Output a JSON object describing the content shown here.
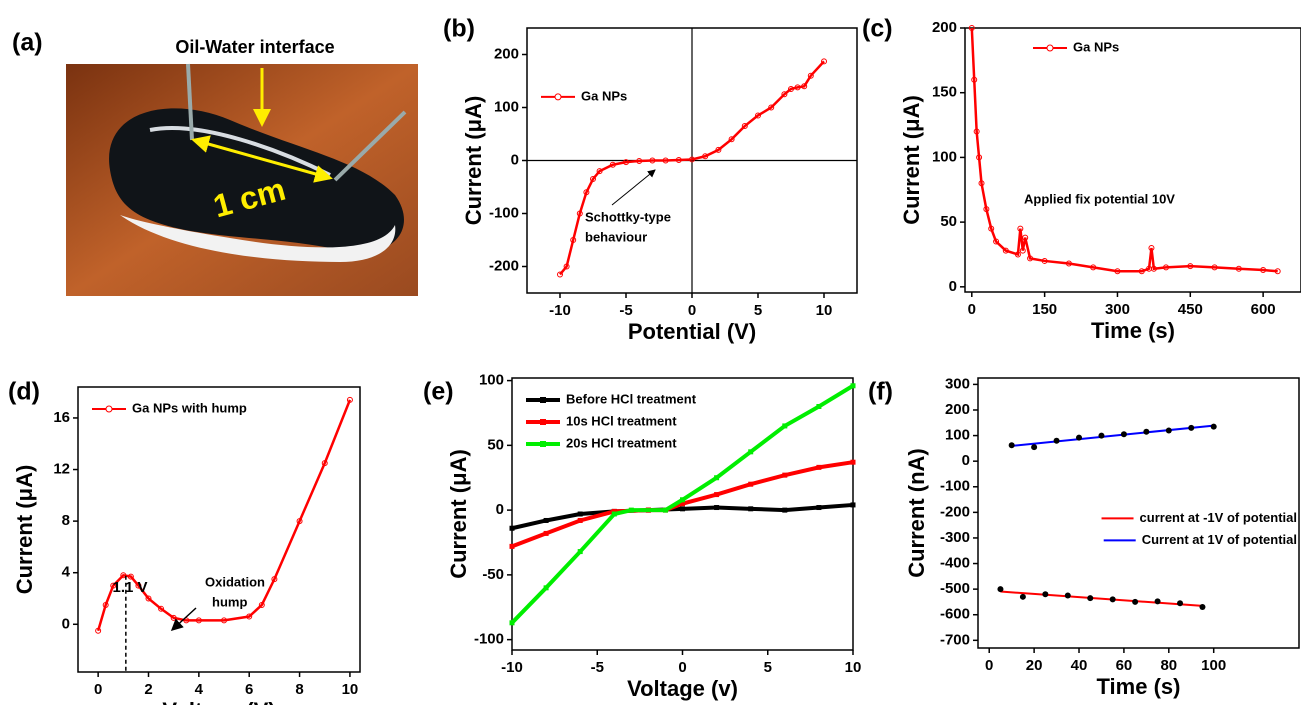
{
  "chart_data": [
    {
      "type": "photo",
      "panel_label": "(a)",
      "annotations": [
        "Oil-Water interface",
        "1 cm"
      ]
    },
    {
      "type": "line",
      "panel_label": "(b)",
      "x_label": "Potential (V)",
      "y_label": "Current (μA)",
      "xlim": [
        -12.5,
        12.5
      ],
      "ylim": [
        -250,
        250
      ],
      "xticks": [
        -10,
        -5,
        0,
        5,
        10
      ],
      "yticks": [
        -200,
        -100,
        0,
        100,
        200
      ],
      "zero_lines": true,
      "legend": "center left",
      "annotations": [
        "Schottky-type",
        "behaviour"
      ],
      "series": [
        {
          "name": "Ga NPs",
          "color": "#ff0000",
          "marker": "circle",
          "x": [
            -10,
            -9.5,
            -9,
            -8.5,
            -8,
            -7.5,
            -7,
            -6,
            -5,
            -4,
            -3,
            -2,
            -1,
            0,
            1,
            2,
            3,
            4,
            5,
            6,
            7,
            7.5,
            8,
            8.5,
            9,
            10
          ],
          "values": [
            -215,
            -200,
            -150,
            -100,
            -60,
            -35,
            -20,
            -8,
            -3,
            -1,
            0,
            0,
            1,
            2,
            8,
            20,
            40,
            65,
            85,
            100,
            125,
            135,
            138,
            140,
            160,
            187
          ]
        }
      ]
    },
    {
      "type": "line",
      "panel_label": "(c)",
      "x_label": "Time (s)",
      "y_label": "Current (μA)",
      "xlim": [
        -14,
        678
      ],
      "ylim": [
        -4,
        200
      ],
      "xticks": [
        0,
        150,
        300,
        450,
        600
      ],
      "yticks": [
        0,
        50,
        100,
        150,
        200
      ],
      "legend": "upper center",
      "annotations": [
        "Applied fix potential 10V"
      ],
      "series": [
        {
          "name": "Ga NPs",
          "color": "#ff0000",
          "marker": "circle",
          "x": [
            0,
            5,
            10,
            15,
            20,
            30,
            40,
            50,
            70,
            95,
            100,
            105,
            110,
            120,
            150,
            200,
            250,
            300,
            350,
            365,
            370,
            375,
            400,
            450,
            500,
            550,
            600,
            630
          ],
          "values": [
            200,
            160,
            120,
            100,
            80,
            60,
            45,
            35,
            28,
            25,
            45,
            28,
            38,
            22,
            20,
            18,
            15,
            12,
            12,
            14,
            30,
            14,
            15,
            16,
            15,
            14,
            13,
            12
          ]
        }
      ]
    },
    {
      "type": "line",
      "panel_label": "(d)",
      "x_label": "Voltage (V)",
      "y_label": "Current (μA)",
      "xlim": [
        -0.8,
        10.4
      ],
      "ylim": [
        -3.7,
        18.4
      ],
      "xticks": [
        0,
        2,
        4,
        6,
        8,
        10
      ],
      "yticks": [
        0,
        4,
        8,
        12,
        16
      ],
      "legend": "upper left",
      "vline": 1.1,
      "annotations": [
        "1.1 V",
        "Oxidation",
        "hump"
      ],
      "series": [
        {
          "name": "Ga NPs with hump",
          "color": "#ff0000",
          "marker": "circle",
          "x": [
            0,
            0.3,
            0.6,
            1,
            1.3,
            1.6,
            2,
            2.5,
            3,
            3.5,
            4,
            5,
            6,
            6.5,
            7,
            8,
            9,
            10
          ],
          "values": [
            -0.5,
            1.5,
            3,
            3.8,
            3.7,
            3,
            2,
            1.2,
            0.5,
            0.3,
            0.3,
            0.3,
            0.6,
            1.5,
            3.5,
            8,
            12.5,
            17.4
          ]
        }
      ]
    },
    {
      "type": "line",
      "panel_label": "(e)",
      "x_label": "Voltage (v)",
      "y_label": "Current (μA)",
      "xlim": [
        -10,
        10
      ],
      "ylim": [
        -108,
        102
      ],
      "xticks": [
        -10,
        -5,
        0,
        5,
        10
      ],
      "yticks": [
        -100,
        -50,
        0,
        50,
        100
      ],
      "legend": "upper left",
      "series": [
        {
          "name": "Before HCl treatment",
          "color": "#000000",
          "marker": "square",
          "x": [
            -10,
            -8,
            -6,
            -4,
            -2,
            0,
            2,
            4,
            6,
            8,
            10
          ],
          "values": [
            -14,
            -8,
            -3,
            -1,
            0,
            1,
            2,
            1,
            0,
            2,
            4
          ]
        },
        {
          "name": "10s HCl treatment",
          "color": "#ff0000",
          "marker": "square",
          "x": [
            -10,
            -8,
            -6,
            -4,
            -2,
            -1,
            0,
            2,
            4,
            6,
            8,
            10
          ],
          "values": [
            -28,
            -18,
            -8,
            -1,
            0,
            0,
            5,
            12,
            20,
            27,
            33,
            37
          ]
        },
        {
          "name": "20s HCl treatment",
          "color": "#00ee00",
          "marker": "square",
          "x": [
            -10,
            -8,
            -6,
            -4,
            -3,
            -1,
            0,
            2,
            4,
            6,
            8,
            10
          ],
          "values": [
            -87,
            -60,
            -32,
            -3,
            0,
            0,
            8,
            25,
            45,
            65,
            80,
            96
          ]
        }
      ]
    },
    {
      "type": "scatter",
      "panel_label": "(f)",
      "x_label": "Time (s)",
      "y_label": "Current (nA)",
      "xlim": [
        -5,
        138
      ],
      "ylim": [
        -730,
        325
      ],
      "xticks": [
        0,
        20,
        40,
        60,
        80,
        100
      ],
      "yticks": [
        -700,
        -600,
        -500,
        -400,
        -300,
        -200,
        -100,
        0,
        100,
        200,
        300
      ],
      "legend": "center right",
      "trend_line": true,
      "marker_color": "#000000",
      "series": [
        {
          "name": "current at -1V of potential",
          "color": "#ff0000",
          "x": [
            5,
            15,
            25,
            35,
            45,
            55,
            65,
            75,
            85,
            95
          ],
          "values": [
            -500,
            -530,
            -520,
            -525,
            -535,
            -540,
            -550,
            -548,
            -555,
            -570
          ]
        },
        {
          "name": "Current at 1V of potential",
          "color": "#0000ff",
          "x": [
            10,
            20,
            30,
            40,
            50,
            60,
            70,
            80,
            90,
            100
          ],
          "values": [
            62,
            55,
            80,
            92,
            100,
            105,
            115,
            120,
            130,
            135
          ]
        }
      ]
    }
  ]
}
